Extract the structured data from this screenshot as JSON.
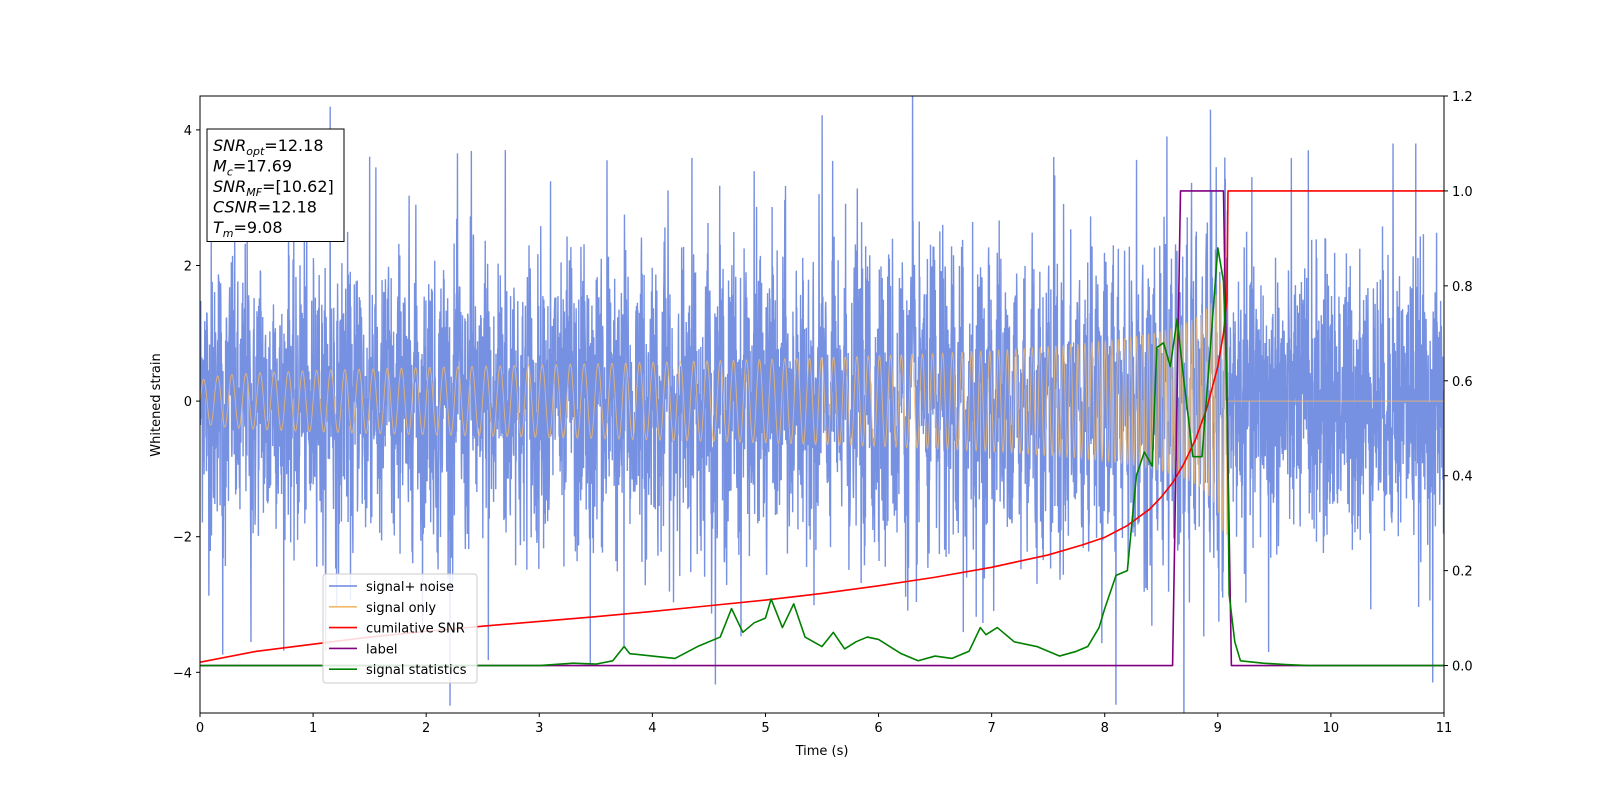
{
  "chart_data": {
    "type": "line",
    "xlabel": "Time (s)",
    "ylabel": "Whitened strain",
    "xlim": [
      0,
      11
    ],
    "ylim_left": [
      -4.6,
      4.5
    ],
    "ylim_right": [
      -0.1,
      1.2
    ],
    "x_ticks": [
      0,
      1,
      2,
      3,
      4,
      5,
      6,
      7,
      8,
      9,
      10,
      11
    ],
    "y_ticks_left": [
      -4,
      -2,
      0,
      2,
      4
    ],
    "y_ticks_right": [
      0.0,
      0.2,
      0.4,
      0.6,
      0.8,
      1.0,
      1.2
    ],
    "grid": false,
    "legend_position": "lower-left",
    "info_box_position": "upper-left",
    "info_box": [
      {
        "base": "SNR",
        "sub": "opt",
        "rest": "=12.18"
      },
      {
        "base": "M",
        "sub": "c",
        "rest": "=17.69"
      },
      {
        "base": "SNR",
        "sub": "MF",
        "rest": "=[10.62]"
      },
      {
        "base": "CSNR",
        "sub": "",
        "rest": "=12.18"
      },
      {
        "base": "T",
        "sub": "m",
        "rest": "=9.08"
      }
    ],
    "series": [
      {
        "name": "signal+ noise",
        "axis": "left",
        "color": "#6a87e0",
        "kind": "noise",
        "std": 1.0,
        "merger_time": 9.08,
        "peak_excursions": [
          {
            "x": 0.1,
            "y": 2.8
          },
          {
            "x": 0.2,
            "y": -3.5
          },
          {
            "x": 0.45,
            "y": -3.3
          },
          {
            "x": 1.15,
            "y": 3.9
          },
          {
            "x": 1.5,
            "y": 3.6
          },
          {
            "x": 1.85,
            "y": 3.5
          },
          {
            "x": 2.4,
            "y": 3.2
          },
          {
            "x": 2.55,
            "y": -4.1
          },
          {
            "x": 2.7,
            "y": 4.05
          },
          {
            "x": 3.1,
            "y": 3.7
          },
          {
            "x": 3.45,
            "y": -3.4
          },
          {
            "x": 3.6,
            "y": 3.9
          },
          {
            "x": 3.75,
            "y": -4.0
          },
          {
            "x": 4.35,
            "y": 3.2
          },
          {
            "x": 4.9,
            "y": 3.9
          },
          {
            "x": 5.5,
            "y": 3.6
          },
          {
            "x": 5.85,
            "y": 3.2
          },
          {
            "x": 6.3,
            "y": 4.1
          },
          {
            "x": 6.75,
            "y": -3.9
          },
          {
            "x": 7.55,
            "y": 3.7
          },
          {
            "x": 8.1,
            "y": -3.9
          },
          {
            "x": 8.55,
            "y": 4.05
          },
          {
            "x": 8.7,
            "y": -4.15
          },
          {
            "x": 9.45,
            "y": -3.7
          },
          {
            "x": 9.8,
            "y": 3.7
          },
          {
            "x": 10.55,
            "y": 3.8
          },
          {
            "x": 10.75,
            "y": 3.8
          },
          {
            "x": 10.9,
            "y": -4.15
          }
        ]
      },
      {
        "name": "signal only",
        "axis": "left",
        "color": "#f2b96a",
        "kind": "chirp",
        "t_start": 0,
        "merger_time": 9.08,
        "initial_amplitude": 0.03,
        "peak_amplitude": 2.7,
        "initial_frequency_hz": 8,
        "final_frequency_hz": 60
      },
      {
        "name": "cumilative SNR",
        "axis": "right",
        "color": "#ff0000",
        "kind": "line",
        "x": [
          0,
          0.5,
          1,
          1.5,
          2,
          2.5,
          3,
          3.5,
          4,
          4.5,
          5,
          5.5,
          6,
          6.5,
          7,
          7.5,
          7.8,
          8,
          8.2,
          8.4,
          8.5,
          8.6,
          8.7,
          8.8,
          8.9,
          9.0,
          9.05,
          9.08,
          9.09,
          11
        ],
        "y": [
          0.007,
          0.03,
          0.045,
          0.06,
          0.072,
          0.083,
          0.093,
          0.103,
          0.114,
          0.126,
          0.138,
          0.152,
          0.168,
          0.186,
          0.207,
          0.233,
          0.254,
          0.27,
          0.295,
          0.33,
          0.355,
          0.385,
          0.425,
          0.475,
          0.54,
          0.63,
          0.7,
          0.77,
          1.0,
          1.0
        ]
      },
      {
        "name": "label",
        "axis": "right",
        "color": "#800080",
        "kind": "line",
        "x": [
          0,
          8.6,
          8.67,
          9.05,
          9.12,
          11
        ],
        "y": [
          0.0,
          0.0,
          1.0,
          1.0,
          0.0,
          0.0
        ]
      },
      {
        "name": "signal statistics",
        "axis": "right",
        "color": "#008000",
        "kind": "line",
        "x": [
          0,
          3.0,
          3.3,
          3.5,
          3.65,
          3.75,
          3.8,
          4.0,
          4.2,
          4.4,
          4.6,
          4.7,
          4.8,
          4.9,
          5.0,
          5.05,
          5.15,
          5.25,
          5.35,
          5.5,
          5.6,
          5.7,
          5.8,
          5.9,
          6.0,
          6.2,
          6.35,
          6.5,
          6.65,
          6.8,
          6.9,
          6.95,
          7.05,
          7.1,
          7.2,
          7.4,
          7.6,
          7.75,
          7.85,
          7.95,
          8.0,
          8.1,
          8.2,
          8.28,
          8.35,
          8.42,
          8.46,
          8.52,
          8.58,
          8.64,
          8.7,
          8.78,
          8.86,
          8.95,
          9.0,
          9.05,
          9.08,
          9.1,
          9.15,
          9.2,
          9.4,
          9.6,
          9.8,
          11
        ],
        "y": [
          0.0,
          0.0,
          0.005,
          0.003,
          0.01,
          0.04,
          0.025,
          0.02,
          0.015,
          0.04,
          0.06,
          0.12,
          0.07,
          0.09,
          0.1,
          0.14,
          0.08,
          0.13,
          0.06,
          0.04,
          0.07,
          0.035,
          0.05,
          0.06,
          0.055,
          0.025,
          0.01,
          0.02,
          0.015,
          0.03,
          0.08,
          0.065,
          0.08,
          0.07,
          0.05,
          0.04,
          0.02,
          0.03,
          0.04,
          0.08,
          0.12,
          0.19,
          0.2,
          0.4,
          0.45,
          0.42,
          0.67,
          0.68,
          0.63,
          0.73,
          0.6,
          0.44,
          0.44,
          0.72,
          0.88,
          0.81,
          0.6,
          0.15,
          0.05,
          0.01,
          0.005,
          0.002,
          0.0,
          0.0
        ]
      }
    ]
  }
}
